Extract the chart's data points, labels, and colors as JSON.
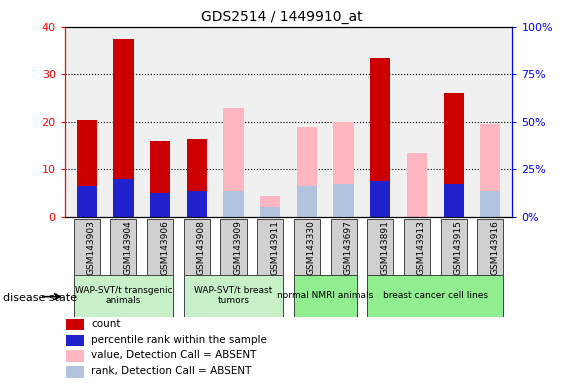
{
  "title": "GDS2514 / 1449910_at",
  "samples": [
    "GSM143903",
    "GSM143904",
    "GSM143906",
    "GSM143908",
    "GSM143909",
    "GSM143911",
    "GSM143330",
    "GSM143697",
    "GSM143891",
    "GSM143913",
    "GSM143915",
    "GSM143916"
  ],
  "count": [
    20.5,
    37.5,
    16.0,
    16.5,
    null,
    null,
    null,
    null,
    33.5,
    null,
    26.0,
    null
  ],
  "percentile": [
    6.5,
    8.0,
    5.0,
    5.5,
    null,
    null,
    null,
    null,
    7.5,
    null,
    7.0,
    null
  ],
  "absent_value": [
    null,
    null,
    null,
    null,
    23.0,
    4.5,
    19.0,
    20.0,
    null,
    13.5,
    null,
    19.5
  ],
  "absent_rank": [
    null,
    null,
    null,
    null,
    5.5,
    2.0,
    6.5,
    7.0,
    null,
    null,
    7.0,
    5.5
  ],
  "groups": [
    {
      "label": "WAP-SVT/t transgenic\nanimals",
      "indices": [
        0,
        1,
        2
      ],
      "color": "#c8f0c8"
    },
    {
      "label": "WAP-SVT/t breast\ntumors",
      "indices": [
        3,
        4,
        5
      ],
      "color": "#c8f0c8"
    },
    {
      "label": "normal NMRI animals",
      "indices": [
        6,
        7
      ],
      "color": "#90ee90"
    },
    {
      "label": "breast cancer cell lines",
      "indices": [
        8,
        9,
        10,
        11
      ],
      "color": "#90ee90"
    }
  ],
  "ylim": [
    0,
    40
  ],
  "y2lim": [
    0,
    100
  ],
  "yticks": [
    0,
    10,
    20,
    30,
    40
  ],
  "y2ticks": [
    0,
    25,
    50,
    75,
    100
  ],
  "bar_width": 0.55,
  "count_color": "#cc0000",
  "percentile_color": "#2222cc",
  "absent_value_color": "#ffb6c1",
  "absent_rank_color": "#b0c4de",
  "background_color": "#ffffff",
  "plot_bg_color": "#f0f0f0",
  "sample_box_color": "#d0d0d0",
  "disease_state_label": "disease state"
}
